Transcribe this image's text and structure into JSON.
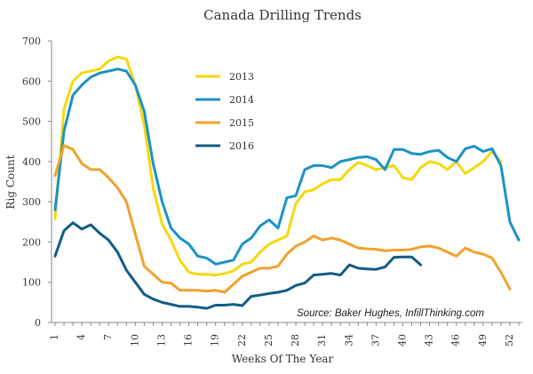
{
  "chart_data": {
    "type": "line",
    "title": "Canada Drilling Trends",
    "xlabel": "Weeks Of The Year",
    "ylabel": "Rig Count",
    "xlim": [
      1,
      53
    ],
    "ylim": [
      0,
      700
    ],
    "x_ticks": [
      1,
      4,
      7,
      10,
      13,
      16,
      19,
      22,
      25,
      28,
      31,
      34,
      37,
      40,
      43,
      46,
      49,
      52
    ],
    "y_ticks": [
      0,
      100,
      200,
      300,
      400,
      500,
      600,
      700
    ],
    "grid": false,
    "legend_position": "center-left",
    "annotation": "Source: Baker Hughes, InfillThinking.com",
    "series": [
      {
        "name": "2013",
        "color": "#f5d80c",
        "x": [
          1,
          2,
          3,
          4,
          5,
          6,
          7,
          8,
          9,
          10,
          11,
          12,
          13,
          14,
          15,
          16,
          17,
          18,
          19,
          20,
          21,
          22,
          23,
          24,
          25,
          26,
          27,
          28,
          29,
          30,
          31,
          32,
          33,
          34,
          35,
          36,
          37,
          38,
          39,
          40,
          41,
          42,
          43,
          44,
          45,
          46,
          47,
          48,
          49,
          50,
          51
        ],
        "values": [
          258,
          530,
          600,
          620,
          625,
          630,
          650,
          660,
          655,
          590,
          490,
          335,
          245,
          205,
          155,
          125,
          120,
          120,
          118,
          122,
          128,
          145,
          150,
          175,
          195,
          205,
          215,
          295,
          325,
          330,
          345,
          355,
          355,
          380,
          398,
          390,
          380,
          385,
          390,
          360,
          355,
          385,
          400,
          395,
          380,
          400,
          370,
          385,
          400,
          425,
          400
        ]
      },
      {
        "name": "2014",
        "color": "#1b92c6",
        "x": [
          1,
          2,
          3,
          4,
          5,
          6,
          7,
          8,
          9,
          10,
          11,
          12,
          13,
          14,
          15,
          16,
          17,
          18,
          19,
          20,
          21,
          22,
          23,
          24,
          25,
          26,
          27,
          28,
          29,
          30,
          31,
          32,
          33,
          34,
          35,
          36,
          37,
          38,
          39,
          40,
          41,
          42,
          43,
          44,
          45,
          46,
          47,
          48,
          49,
          50,
          51,
          52,
          53
        ],
        "values": [
          280,
          475,
          565,
          590,
          610,
          620,
          625,
          630,
          625,
          590,
          525,
          395,
          300,
          235,
          210,
          195,
          165,
          160,
          145,
          150,
          155,
          195,
          210,
          240,
          255,
          235,
          310,
          315,
          380,
          390,
          390,
          385,
          400,
          405,
          410,
          412,
          405,
          380,
          430,
          430,
          420,
          418,
          425,
          428,
          410,
          400,
          432,
          438,
          425,
          432,
          390,
          250,
          205
        ]
      },
      {
        "name": "2015",
        "color": "#f1a22b",
        "x": [
          1,
          2,
          3,
          4,
          5,
          6,
          7,
          8,
          9,
          10,
          11,
          12,
          13,
          14,
          15,
          16,
          17,
          18,
          19,
          20,
          21,
          22,
          23,
          24,
          25,
          26,
          27,
          28,
          29,
          30,
          31,
          32,
          33,
          34,
          35,
          36,
          37,
          38,
          39,
          40,
          41,
          42,
          43,
          44,
          45,
          46,
          47,
          48,
          49,
          50,
          51,
          52
        ],
        "values": [
          365,
          440,
          430,
          395,
          380,
          380,
          360,
          335,
          300,
          220,
          140,
          120,
          100,
          98,
          80,
          80,
          80,
          78,
          80,
          75,
          95,
          115,
          125,
          135,
          135,
          140,
          170,
          190,
          200,
          215,
          205,
          210,
          205,
          195,
          185,
          183,
          182,
          178,
          180,
          180,
          182,
          188,
          190,
          185,
          175,
          165,
          185,
          175,
          170,
          160,
          125,
          83
        ]
      },
      {
        "name": "2016",
        "color": "#135c85",
        "x": [
          1,
          2,
          3,
          4,
          5,
          6,
          7,
          8,
          9,
          10,
          11,
          12,
          13,
          14,
          15,
          16,
          17,
          18,
          19,
          20,
          21,
          22,
          23,
          24,
          25,
          26,
          27,
          28,
          29,
          30,
          31,
          32,
          33,
          34,
          35,
          36,
          37,
          38,
          39,
          40,
          41,
          42
        ],
        "values": [
          165,
          228,
          248,
          232,
          243,
          222,
          205,
          175,
          130,
          100,
          70,
          58,
          50,
          45,
          40,
          40,
          38,
          35,
          43,
          43,
          45,
          42,
          65,
          68,
          72,
          75,
          80,
          92,
          98,
          118,
          120,
          122,
          118,
          143,
          135,
          133,
          132,
          138,
          162,
          163,
          163,
          143
        ]
      }
    ]
  }
}
